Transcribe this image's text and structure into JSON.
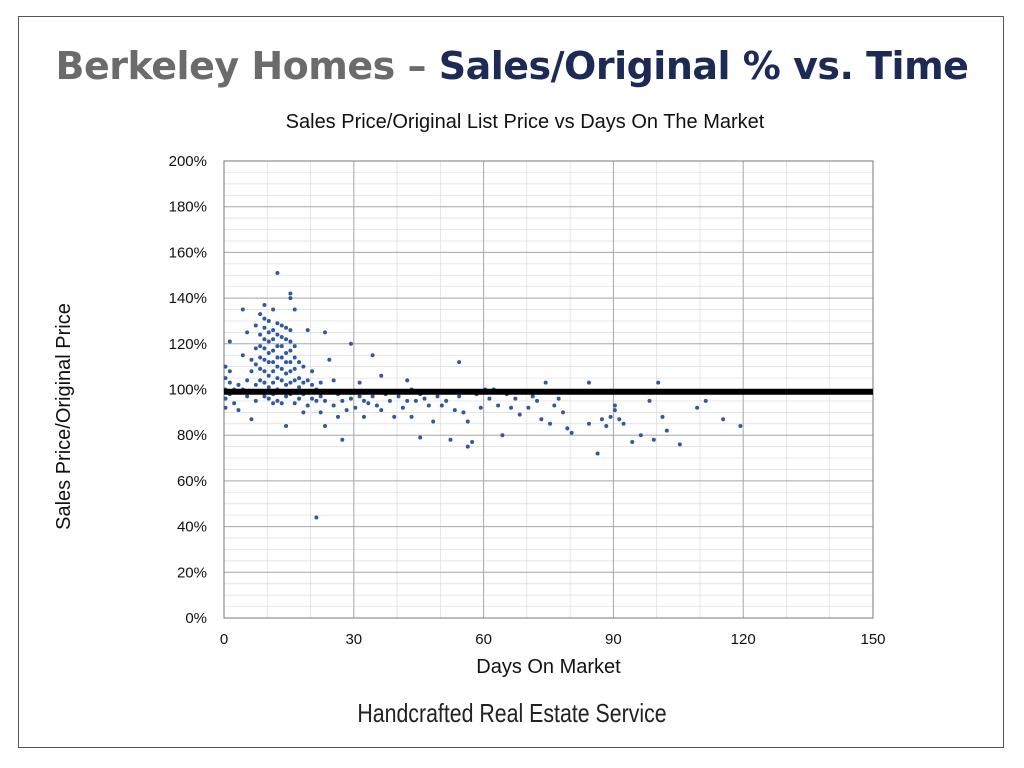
{
  "slide": {
    "title_prefix": "Berkeley Homes –",
    "title_main": "Sales/Original % vs. Time",
    "footer": "Handcrafted Real Estate Service",
    "colors": {
      "prefix": "#6b6b6b",
      "main": "#1c2a55",
      "points": "#2f5aa0",
      "refline": "#000000"
    }
  },
  "chart_data": {
    "type": "scatter",
    "title": "Sales Price/Original List Price vs Days On The Market",
    "xlabel": "Days On Market",
    "ylabel": "Sales Price/Original Price",
    "xlim": [
      0,
      150
    ],
    "ylim": [
      0,
      200
    ],
    "x_ticks": [
      "0",
      "30",
      "60",
      "90",
      "120",
      "150"
    ],
    "y_ticks": [
      "0%",
      "20%",
      "40%",
      "60%",
      "80%",
      "100%",
      "120%",
      "140%",
      "160%",
      "180%",
      "200%"
    ],
    "grid": true,
    "reference_line_y": 99,
    "points": [
      [
        0,
        105
      ],
      [
        0,
        100
      ],
      [
        0,
        96
      ],
      [
        0,
        92
      ],
      [
        0,
        110
      ],
      [
        1,
        108
      ],
      [
        1,
        103
      ],
      [
        1,
        98
      ],
      [
        1,
        121
      ],
      [
        2,
        100
      ],
      [
        2,
        94
      ],
      [
        3,
        91
      ],
      [
        3,
        102
      ],
      [
        4,
        135
      ],
      [
        4,
        115
      ],
      [
        4,
        100
      ],
      [
        5,
        104
      ],
      [
        5,
        97
      ],
      [
        5,
        125
      ],
      [
        6,
        87
      ],
      [
        6,
        113
      ],
      [
        6,
        108
      ],
      [
        7,
        128
      ],
      [
        7,
        118
      ],
      [
        7,
        111
      ],
      [
        7,
        102
      ],
      [
        7,
        95
      ],
      [
        8,
        133
      ],
      [
        8,
        124
      ],
      [
        8,
        119
      ],
      [
        8,
        114
      ],
      [
        8,
        109
      ],
      [
        8,
        104
      ],
      [
        8,
        99
      ],
      [
        9,
        137
      ],
      [
        9,
        131
      ],
      [
        9,
        127
      ],
      [
        9,
        122
      ],
      [
        9,
        118
      ],
      [
        9,
        113
      ],
      [
        9,
        108
      ],
      [
        9,
        103
      ],
      [
        9,
        97
      ],
      [
        10,
        130
      ],
      [
        10,
        125
      ],
      [
        10,
        121
      ],
      [
        10,
        116
      ],
      [
        10,
        112
      ],
      [
        10,
        106
      ],
      [
        10,
        101
      ],
      [
        10,
        96
      ],
      [
        11,
        135
      ],
      [
        11,
        126
      ],
      [
        11,
        122
      ],
      [
        11,
        117
      ],
      [
        11,
        112
      ],
      [
        11,
        108
      ],
      [
        11,
        103
      ],
      [
        11,
        98
      ],
      [
        11,
        94
      ],
      [
        12,
        151
      ],
      [
        12,
        129
      ],
      [
        12,
        124
      ],
      [
        12,
        119
      ],
      [
        12,
        114
      ],
      [
        12,
        110
      ],
      [
        12,
        105
      ],
      [
        12,
        100
      ],
      [
        12,
        95
      ],
      [
        13,
        128
      ],
      [
        13,
        123
      ],
      [
        13,
        119
      ],
      [
        13,
        114
      ],
      [
        13,
        109
      ],
      [
        13,
        104
      ],
      [
        13,
        99
      ],
      [
        13,
        94
      ],
      [
        14,
        127
      ],
      [
        14,
        122
      ],
      [
        14,
        116
      ],
      [
        14,
        112
      ],
      [
        14,
        107
      ],
      [
        14,
        102
      ],
      [
        14,
        97
      ],
      [
        14,
        84
      ],
      [
        15,
        142
      ],
      [
        15,
        140
      ],
      [
        15,
        126
      ],
      [
        15,
        121
      ],
      [
        15,
        117
      ],
      [
        15,
        112
      ],
      [
        15,
        108
      ],
      [
        15,
        103
      ],
      [
        15,
        98
      ],
      [
        16,
        135
      ],
      [
        16,
        119
      ],
      [
        16,
        114
      ],
      [
        16,
        109
      ],
      [
        16,
        104
      ],
      [
        16,
        99
      ],
      [
        16,
        94
      ],
      [
        17,
        112
      ],
      [
        17,
        105
      ],
      [
        17,
        101
      ],
      [
        17,
        96
      ],
      [
        18,
        110
      ],
      [
        18,
        103
      ],
      [
        18,
        98
      ],
      [
        18,
        90
      ],
      [
        19,
        126
      ],
      [
        19,
        104
      ],
      [
        19,
        99
      ],
      [
        19,
        93
      ],
      [
        20,
        102
      ],
      [
        20,
        96
      ],
      [
        20,
        108
      ],
      [
        21,
        100
      ],
      [
        21,
        95
      ],
      [
        21,
        44
      ],
      [
        22,
        103
      ],
      [
        22,
        97
      ],
      [
        22,
        90
      ],
      [
        23,
        125
      ],
      [
        23,
        95
      ],
      [
        23,
        84
      ],
      [
        24,
        113
      ],
      [
        24,
        99
      ],
      [
        25,
        93
      ],
      [
        25,
        104
      ],
      [
        26,
        98
      ],
      [
        26,
        88
      ],
      [
        27,
        95
      ],
      [
        27,
        78
      ],
      [
        28,
        99
      ],
      [
        28,
        91
      ],
      [
        29,
        96
      ],
      [
        29,
        120
      ],
      [
        30,
        99
      ],
      [
        30,
        92
      ],
      [
        31,
        97
      ],
      [
        31,
        103
      ],
      [
        32,
        95
      ],
      [
        32,
        88
      ],
      [
        33,
        99
      ],
      [
        33,
        94
      ],
      [
        34,
        115
      ],
      [
        34,
        97
      ],
      [
        35,
        93
      ],
      [
        35,
        99
      ],
      [
        36,
        91
      ],
      [
        36,
        106
      ],
      [
        37,
        98
      ],
      [
        38,
        95
      ],
      [
        39,
        88
      ],
      [
        40,
        97
      ],
      [
        41,
        92
      ],
      [
        42,
        104
      ],
      [
        42,
        95
      ],
      [
        43,
        100
      ],
      [
        43,
        88
      ],
      [
        44,
        95
      ],
      [
        45,
        98
      ],
      [
        45,
        79
      ],
      [
        46,
        96
      ],
      [
        47,
        93
      ],
      [
        48,
        86
      ],
      [
        49,
        97
      ],
      [
        50,
        93
      ],
      [
        51,
        95
      ],
      [
        52,
        78
      ],
      [
        53,
        91
      ],
      [
        54,
        112
      ],
      [
        54,
        97
      ],
      [
        55,
        90
      ],
      [
        56,
        75
      ],
      [
        56,
        86
      ],
      [
        57,
        77
      ],
      [
        58,
        98
      ],
      [
        59,
        92
      ],
      [
        60,
        100
      ],
      [
        61,
        96
      ],
      [
        62,
        100
      ],
      [
        63,
        93
      ],
      [
        64,
        80
      ],
      [
        65,
        98
      ],
      [
        66,
        92
      ],
      [
        67,
        96
      ],
      [
        68,
        89
      ],
      [
        70,
        92
      ],
      [
        71,
        97
      ],
      [
        72,
        95
      ],
      [
        73,
        87
      ],
      [
        74,
        103
      ],
      [
        75,
        85
      ],
      [
        76,
        93
      ],
      [
        77,
        96
      ],
      [
        78,
        90
      ],
      [
        79,
        83
      ],
      [
        80,
        81
      ],
      [
        84,
        103
      ],
      [
        84,
        85
      ],
      [
        86,
        72
      ],
      [
        87,
        87
      ],
      [
        88,
        84
      ],
      [
        89,
        88
      ],
      [
        90,
        93
      ],
      [
        90,
        91
      ],
      [
        91,
        87
      ],
      [
        92,
        85
      ],
      [
        94,
        77
      ],
      [
        96,
        80
      ],
      [
        98,
        95
      ],
      [
        99,
        78
      ],
      [
        100,
        103
      ],
      [
        101,
        88
      ],
      [
        102,
        82
      ],
      [
        105,
        76
      ],
      [
        109,
        92
      ],
      [
        111,
        95
      ],
      [
        115,
        87
      ],
      [
        119,
        84
      ]
    ]
  }
}
